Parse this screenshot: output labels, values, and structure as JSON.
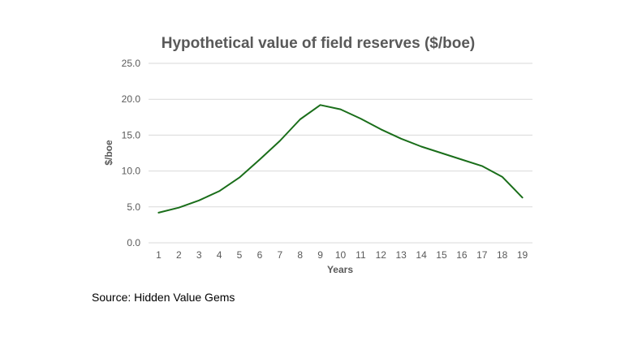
{
  "chart_data": {
    "type": "line",
    "title": "Hypothetical value of field reserves ($/boe)",
    "xlabel": "Years",
    "ylabel": "$/boe",
    "ylim": [
      0,
      25
    ],
    "yticks": [
      "0.0",
      "5.0",
      "10.0",
      "15.0",
      "20.0",
      "25.0"
    ],
    "categories": [
      "1",
      "2",
      "3",
      "4",
      "5",
      "6",
      "7",
      "8",
      "9",
      "10",
      "11",
      "12",
      "13",
      "14",
      "15",
      "16",
      "17",
      "18",
      "19"
    ],
    "series": [
      {
        "values": [
          4.2,
          4.9,
          5.9,
          7.2,
          9.1,
          11.6,
          14.2,
          17.2,
          19.2,
          18.6,
          17.3,
          15.8,
          14.5,
          13.4,
          12.5,
          11.6,
          10.7,
          9.2,
          6.3
        ],
        "color": "#1a6e1a"
      }
    ],
    "grid": true,
    "gridColor": "#d9d9d9"
  },
  "source": "Source: Hidden Value Gems"
}
